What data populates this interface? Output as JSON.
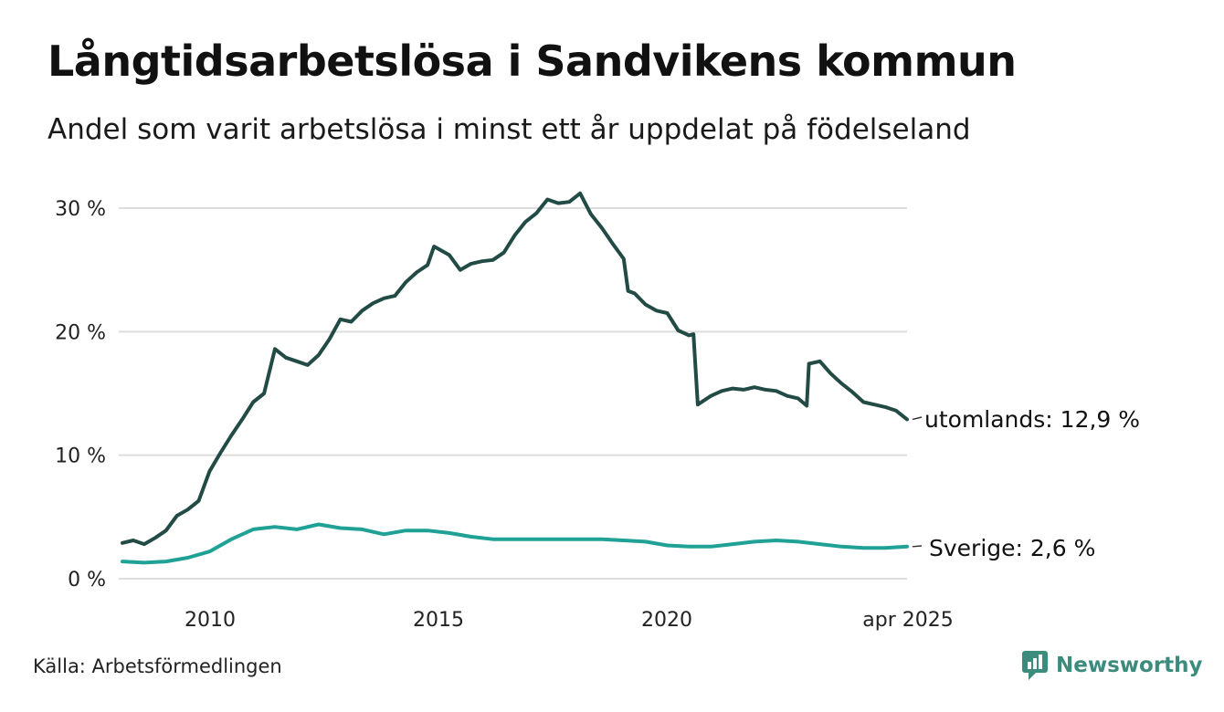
{
  "header": {
    "title": "Långtidsarbetslösa i Sandvikens kommun",
    "subtitle": "Andel som varit arbetslösa i minst ett år uppdelat på födelseland"
  },
  "footer": {
    "source": "Källa: Arbetsförmedlingen",
    "brand": "Newsworthy",
    "brand_icon": "newsworthy-logo-icon"
  },
  "colors": {
    "foreign_born": "#234b45",
    "sweden_born": "#1fa196",
    "grid": "#dddddd",
    "brand": "#3b8c7c"
  },
  "chart_data": {
    "type": "line",
    "x_ticks": [
      {
        "x": 2010,
        "label": "2010"
      },
      {
        "x": 2015,
        "label": "2015"
      },
      {
        "x": 2020,
        "label": "2020"
      },
      {
        "x": 2025.25,
        "label": "apr 2025"
      }
    ],
    "y_ticks": [
      {
        "y": 0,
        "label": "0 %"
      },
      {
        "y": 10,
        "label": "10 %"
      },
      {
        "y": 20,
        "label": "20 %"
      },
      {
        "y": 30,
        "label": "30 %"
      }
    ],
    "xlim": [
      2008.0,
      2025.25
    ],
    "ylim": [
      0,
      30
    ],
    "grid": true,
    "series": [
      {
        "key": "utomlands",
        "end_label": "utomlands: 12,9 %",
        "points": [
          [
            2008.0,
            2.9
          ],
          [
            2008.25,
            3.1
          ],
          [
            2008.5,
            2.8
          ],
          [
            2008.75,
            3.3
          ],
          [
            2009.0,
            3.9
          ],
          [
            2009.25,
            5.1
          ],
          [
            2009.5,
            5.6
          ],
          [
            2009.75,
            6.3
          ],
          [
            2010.0,
            8.7
          ],
          [
            2010.25,
            10.2
          ],
          [
            2010.5,
            11.6
          ],
          [
            2010.75,
            12.9
          ],
          [
            2011.0,
            14.3
          ],
          [
            2011.25,
            15.0
          ],
          [
            2011.5,
            18.6
          ],
          [
            2011.75,
            17.9
          ],
          [
            2012.0,
            17.6
          ],
          [
            2012.25,
            17.3
          ],
          [
            2012.5,
            18.1
          ],
          [
            2012.75,
            19.4
          ],
          [
            2013.0,
            21.0
          ],
          [
            2013.25,
            20.8
          ],
          [
            2013.5,
            21.7
          ],
          [
            2013.75,
            22.3
          ],
          [
            2014.0,
            22.7
          ],
          [
            2014.25,
            22.9
          ],
          [
            2014.5,
            24.0
          ],
          [
            2014.75,
            24.8
          ],
          [
            2015.0,
            25.4
          ],
          [
            2015.15,
            26.9
          ],
          [
            2015.5,
            26.2
          ],
          [
            2015.75,
            25.0
          ],
          [
            2016.0,
            25.5
          ],
          [
            2016.25,
            25.7
          ],
          [
            2016.5,
            25.8
          ],
          [
            2016.75,
            26.4
          ],
          [
            2017.0,
            27.8
          ],
          [
            2017.25,
            28.9
          ],
          [
            2017.5,
            29.6
          ],
          [
            2017.75,
            30.7
          ],
          [
            2018.0,
            30.4
          ],
          [
            2018.25,
            30.5
          ],
          [
            2018.5,
            31.2
          ],
          [
            2018.75,
            29.5
          ],
          [
            2019.0,
            28.4
          ],
          [
            2019.25,
            27.1
          ],
          [
            2019.5,
            25.9
          ],
          [
            2019.6,
            23.3
          ],
          [
            2019.75,
            23.1
          ],
          [
            2020.0,
            22.2
          ],
          [
            2020.25,
            21.7
          ],
          [
            2020.5,
            21.5
          ],
          [
            2020.75,
            20.1
          ],
          [
            2021.0,
            19.7
          ],
          [
            2021.1,
            19.8
          ],
          [
            2021.2,
            14.1
          ],
          [
            2021.5,
            14.8
          ],
          [
            2021.75,
            15.2
          ],
          [
            2022.0,
            15.4
          ],
          [
            2022.25,
            15.3
          ],
          [
            2022.5,
            15.5
          ],
          [
            2022.75,
            15.3
          ],
          [
            2023.0,
            15.2
          ],
          [
            2023.25,
            14.8
          ],
          [
            2023.5,
            14.6
          ],
          [
            2023.7,
            14.0
          ],
          [
            2023.75,
            17.4
          ],
          [
            2024.0,
            17.6
          ],
          [
            2024.25,
            16.6
          ],
          [
            2024.5,
            15.8
          ],
          [
            2024.75,
            15.1
          ],
          [
            2025.0,
            14.3
          ],
          [
            2025.25,
            14.1
          ],
          [
            2025.5,
            13.9
          ],
          [
            2025.75,
            13.6
          ],
          [
            2026.0,
            12.9
          ]
        ]
      },
      {
        "key": "sverige",
        "end_label": "Sverige:  2,6 %",
        "points": [
          [
            2008.0,
            1.4
          ],
          [
            2008.5,
            1.3
          ],
          [
            2009.0,
            1.4
          ],
          [
            2009.5,
            1.7
          ],
          [
            2010.0,
            2.2
          ],
          [
            2010.5,
            3.2
          ],
          [
            2011.0,
            4.0
          ],
          [
            2011.5,
            4.2
          ],
          [
            2012.0,
            4.0
          ],
          [
            2012.5,
            4.4
          ],
          [
            2013.0,
            4.1
          ],
          [
            2013.5,
            4.0
          ],
          [
            2014.0,
            3.6
          ],
          [
            2014.5,
            3.9
          ],
          [
            2015.0,
            3.9
          ],
          [
            2015.5,
            3.7
          ],
          [
            2016.0,
            3.4
          ],
          [
            2016.5,
            3.2
          ],
          [
            2017.0,
            3.2
          ],
          [
            2017.5,
            3.2
          ],
          [
            2018.0,
            3.2
          ],
          [
            2018.5,
            3.2
          ],
          [
            2019.0,
            3.2
          ],
          [
            2019.5,
            3.1
          ],
          [
            2020.0,
            3.0
          ],
          [
            2020.5,
            2.7
          ],
          [
            2021.0,
            2.6
          ],
          [
            2021.5,
            2.6
          ],
          [
            2022.0,
            2.8
          ],
          [
            2022.5,
            3.0
          ],
          [
            2023.0,
            3.1
          ],
          [
            2023.5,
            3.0
          ],
          [
            2024.0,
            2.8
          ],
          [
            2024.5,
            2.6
          ],
          [
            2025.0,
            2.5
          ],
          [
            2025.5,
            2.5
          ],
          [
            2026.0,
            2.6
          ]
        ]
      }
    ]
  }
}
